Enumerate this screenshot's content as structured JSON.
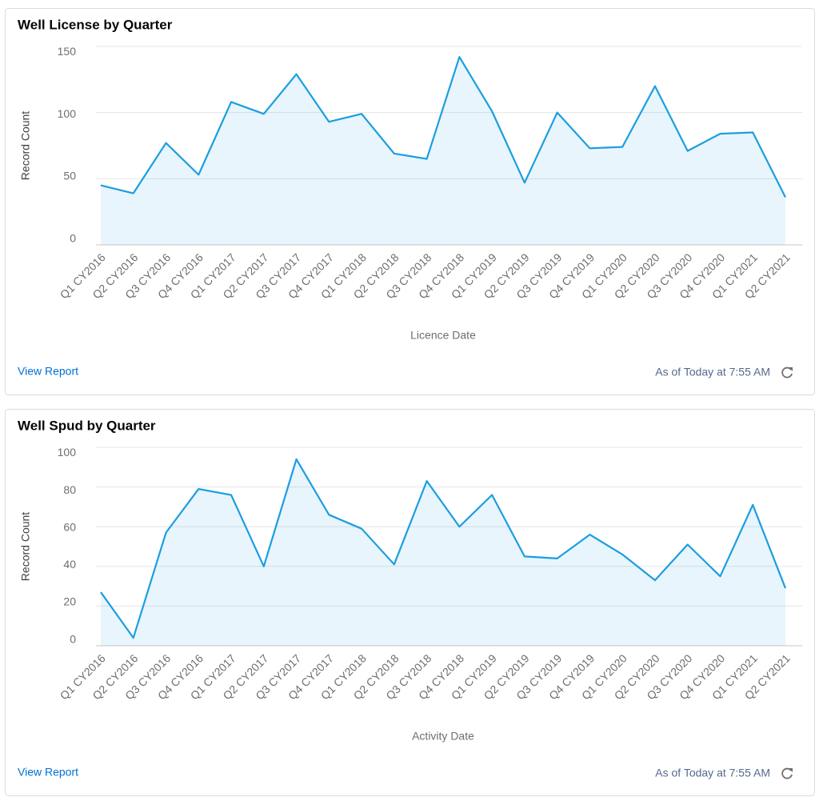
{
  "chart_data": [
    {
      "type": "line",
      "title": "Well License by Quarter",
      "y_label": "Record Count",
      "x_label": "Licence Date",
      "categories": [
        "Q1 CY2016",
        "Q2 CY2016",
        "Q3 CY2016",
        "Q4 CY2016",
        "Q1 CY2017",
        "Q2 CY2017",
        "Q3 CY2017",
        "Q4 CY2017",
        "Q1 CY2018",
        "Q2 CY2018",
        "Q3 CY2018",
        "Q4 CY2018",
        "Q1 CY2019",
        "Q2 CY2019",
        "Q3 CY2019",
        "Q4 CY2019",
        "Q1 CY2020",
        "Q2 CY2020",
        "Q3 CY2020",
        "Q4 CY2020",
        "Q1 CY2021",
        "Q2 CY2021"
      ],
      "values": [
        45,
        39,
        77,
        53,
        108,
        99,
        129,
        93,
        99,
        69,
        65,
        142,
        101,
        47,
        100,
        73,
        74,
        120,
        71,
        84,
        85,
        36
      ],
      "color": "#1b9ee0",
      "ylim": [
        0,
        150
      ],
      "yticks": [
        0,
        50,
        100,
        150
      ],
      "grid": true,
      "link": "View Report",
      "timestamp": "As of Today at 7:55 AM"
    },
    {
      "type": "line",
      "title": "Well Spud by Quarter",
      "y_label": "Record Count",
      "x_label": "Activity Date",
      "categories": [
        "Q1 CY2016",
        "Q2 CY2016",
        "Q3 CY2016",
        "Q4 CY2016",
        "Q1 CY2017",
        "Q2 CY2017",
        "Q3 CY2017",
        "Q4 CY2017",
        "Q1 CY2018",
        "Q2 CY2018",
        "Q3 CY2018",
        "Q4 CY2018",
        "Q1 CY2019",
        "Q2 CY2019",
        "Q3 CY2019",
        "Q4 CY2019",
        "Q1 CY2020",
        "Q2 CY2020",
        "Q3 CY2020",
        "Q4 CY2020",
        "Q1 CY2021",
        "Q2 CY2021"
      ],
      "values": [
        27,
        4,
        57,
        79,
        76,
        40,
        94,
        66,
        59,
        41,
        83,
        60,
        76,
        45,
        44,
        56,
        46,
        33,
        51,
        35,
        71,
        29
      ],
      "color": "#1b9ee0",
      "ylim": [
        0,
        100
      ],
      "yticks": [
        0,
        20,
        40,
        60,
        80,
        100
      ],
      "grid": true,
      "link": "View Report",
      "timestamp": "As of Today at 7:55 AM"
    }
  ]
}
